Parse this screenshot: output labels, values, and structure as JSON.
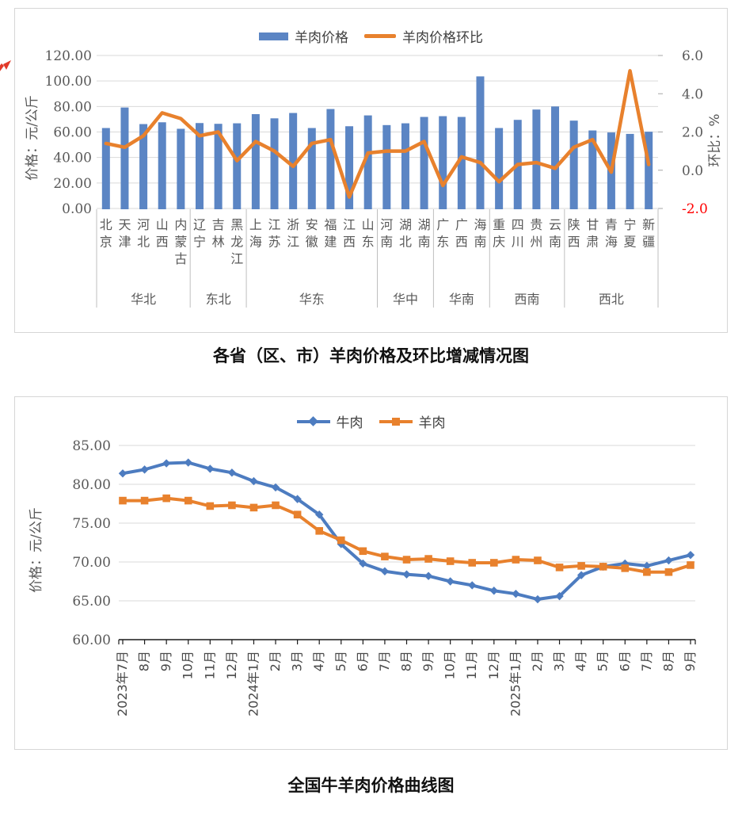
{
  "captions": {
    "chart1": "各省（区、市）羊肉价格及环比增减情况图",
    "chart2": "全国牛羊肉价格曲线图"
  },
  "colors": {
    "bar_blue": "#5b85c4",
    "orange": "#e8812d",
    "beef_blue": "#4d7cc0",
    "grid": "#d9d9d9",
    "axis_text": "#595959",
    "negative_red": "#ff0000",
    "separator": "#bfbfbf",
    "axis_black": "#1a1a1a",
    "arrow_red": "#e23a2a"
  },
  "chart_data": [
    {
      "type": "bar",
      "combo": "bar+line",
      "legend_position": "top",
      "grid": true,
      "ylabel_left": "价格：元/公斤",
      "ylabel_right": "环比：%",
      "ylim_left": [
        0,
        120
      ],
      "yticks_left": [
        "0.00",
        "20.00",
        "40.00",
        "60.00",
        "80.00",
        "100.00",
        "120.00"
      ],
      "ylim_right": [
        -2,
        6
      ],
      "yticks_right": [
        "-2.0",
        "0.0",
        "2.0",
        "4.0",
        "6.0"
      ],
      "region_groups": [
        {
          "region": "华北",
          "provinces": [
            "北京",
            "天津",
            "河北",
            "山西",
            "内蒙古"
          ]
        },
        {
          "region": "东北",
          "provinces": [
            "辽宁",
            "吉林",
            "黑龙江"
          ]
        },
        {
          "region": "华东",
          "provinces": [
            "上海",
            "江苏",
            "浙江",
            "安徽",
            "福建",
            "江西",
            "山东"
          ]
        },
        {
          "region": "华中",
          "provinces": [
            "河南",
            "湖北",
            "湖南"
          ]
        },
        {
          "region": "华南",
          "provinces": [
            "广东",
            "广西",
            "海南"
          ]
        },
        {
          "region": "西南",
          "provinces": [
            "重庆",
            "四川",
            "贵州",
            "云南"
          ]
        },
        {
          "region": "西北",
          "provinces": [
            "陕西",
            "甘肃",
            "青海",
            "宁夏",
            "新疆"
          ]
        }
      ],
      "categories": [
        "北京",
        "天津",
        "河北",
        "山西",
        "内蒙古",
        "辽宁",
        "吉林",
        "黑龙江",
        "上海",
        "江苏",
        "浙江",
        "安徽",
        "福建",
        "江西",
        "山东",
        "河南",
        "湖北",
        "湖南",
        "广东",
        "广西",
        "海南",
        "重庆",
        "四川",
        "贵州",
        "云南",
        "陕西",
        "甘肃",
        "青海",
        "宁夏",
        "新疆"
      ],
      "series": [
        {
          "name": "羊肉价格",
          "type": "bar",
          "axis": "left",
          "values": [
            63.1,
            79.2,
            66.2,
            67.6,
            62.5,
            67.0,
            66.4,
            66.8,
            74.0,
            70.7,
            74.9,
            63.1,
            78.0,
            64.5,
            73.0,
            65.4,
            66.8,
            71.8,
            72.4,
            71.8,
            103.6,
            63.1,
            69.5,
            77.6,
            80.0,
            68.9,
            61.2,
            59.6,
            58.5,
            60.2
          ]
        },
        {
          "name": "羊肉价格环比",
          "type": "line",
          "axis": "right",
          "values": [
            1.4,
            1.2,
            1.8,
            3.0,
            2.7,
            1.8,
            2.0,
            0.5,
            1.5,
            1.0,
            0.2,
            1.4,
            1.6,
            -1.4,
            0.9,
            1.0,
            1.0,
            1.5,
            -0.8,
            0.7,
            0.4,
            -0.6,
            0.3,
            0.4,
            0.1,
            1.2,
            1.6,
            -0.1,
            5.2,
            0.3
          ]
        }
      ]
    },
    {
      "type": "line",
      "legend_position": "top",
      "grid": true,
      "ylabel": "价格：元/公斤",
      "ylim": [
        60,
        85
      ],
      "yticks": [
        "60.00",
        "65.00",
        "70.00",
        "75.00",
        "80.00",
        "85.00"
      ],
      "categories": [
        "2023年7月",
        "8月",
        "9月",
        "10月",
        "11月",
        "12月",
        "2024年1月",
        "2月",
        "3月",
        "4月",
        "5月",
        "6月",
        "7月",
        "8月",
        "9月",
        "10月",
        "11月",
        "12月",
        "2025年1月",
        "2月",
        "3月",
        "4月",
        "5月",
        "6月",
        "7月",
        "8月",
        "9月"
      ],
      "series": [
        {
          "name": "牛肉",
          "marker": "diamond",
          "values": [
            81.4,
            81.9,
            82.7,
            82.8,
            82.0,
            81.5,
            80.4,
            79.6,
            78.1,
            76.1,
            72.3,
            69.8,
            68.8,
            68.4,
            68.2,
            67.5,
            67.0,
            66.3,
            65.9,
            65.2,
            65.6,
            68.3,
            69.4,
            69.8,
            69.5,
            70.2,
            70.9
          ]
        },
        {
          "name": "羊肉",
          "marker": "square",
          "values": [
            77.9,
            77.9,
            78.2,
            77.9,
            77.2,
            77.3,
            77.0,
            77.3,
            76.1,
            74.0,
            72.8,
            71.4,
            70.7,
            70.3,
            70.4,
            70.1,
            69.9,
            69.9,
            70.3,
            70.2,
            69.3,
            69.5,
            69.4,
            69.2,
            68.7,
            68.7,
            69.6
          ]
        }
      ]
    }
  ]
}
